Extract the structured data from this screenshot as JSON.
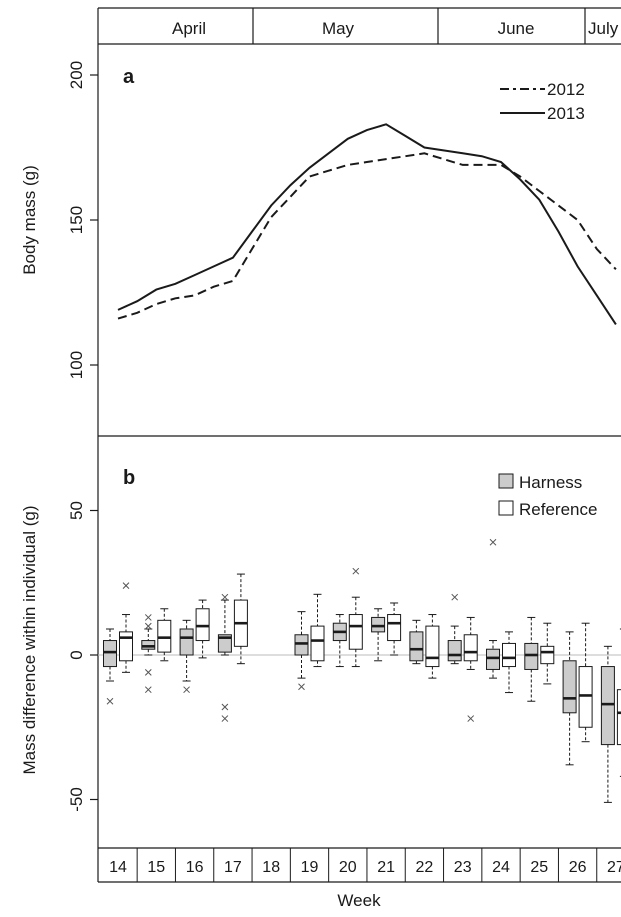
{
  "months": [
    "April",
    "May",
    "June",
    "July"
  ],
  "weeks": [
    "14",
    "15",
    "16",
    "17",
    "18",
    "19",
    "20",
    "21",
    "22",
    "23",
    "24",
    "25",
    "26",
    "27"
  ],
  "xlabel": "Week",
  "chart_data": [
    {
      "type": "line",
      "panel_label": "a",
      "ylabel": "Body mass (g)",
      "ylim": [
        75,
        210
      ],
      "yticks": [
        100,
        150,
        200
      ],
      "legend_position": "top-right",
      "x": [
        14,
        14.5,
        15,
        15.5,
        16,
        16.5,
        17,
        17.5,
        18,
        18.5,
        19,
        19.5,
        20,
        20.5,
        21,
        21.5,
        22,
        22.5,
        23,
        23.5,
        24,
        24.5,
        25,
        25.5,
        26,
        26.5,
        27
      ],
      "series": [
        {
          "name": "2012",
          "style": "dashed",
          "values": [
            116,
            118,
            121,
            123,
            124,
            127,
            129,
            140,
            151,
            158,
            165,
            167,
            169,
            170,
            171,
            172,
            173,
            171,
            169,
            169,
            169,
            165,
            160,
            155,
            150,
            140,
            133
          ]
        },
        {
          "name": "2013",
          "style": "solid",
          "values": [
            119,
            122,
            126,
            128,
            131,
            134,
            137,
            146,
            155,
            162,
            168,
            173,
            178,
            181,
            183,
            179,
            175,
            174,
            173,
            172,
            170,
            164,
            157,
            146,
            134,
            124,
            114
          ]
        }
      ]
    },
    {
      "type": "boxplot",
      "panel_label": "b",
      "ylabel": "Mass difference within individual (g)",
      "ylim": [
        -65,
        75
      ],
      "yticks": [
        -50,
        0,
        50
      ],
      "legend_position": "top-right",
      "groups": [
        {
          "name": "Harness",
          "fill": "#cccccc",
          "boxes": [
            {
              "week": 14,
              "whislo": -9,
              "q1": -4,
              "med": 1,
              "q3": 5,
              "whishi": 9,
              "fliers": [
                -16
              ]
            },
            {
              "week": 15,
              "whislo": 0,
              "q1": 2,
              "med": 3,
              "q3": 5,
              "whishi": 9,
              "fliers": [
                -12,
                -6,
                10,
                13
              ]
            },
            {
              "week": 16,
              "whislo": -9,
              "q1": 0,
              "med": 6,
              "q3": 9,
              "whishi": 12,
              "fliers": [
                -12
              ]
            },
            {
              "week": 17,
              "whislo": 0,
              "q1": 1,
              "med": 6,
              "q3": 7,
              "whishi": 19,
              "fliers": [
                -22,
                -18,
                20
              ]
            },
            {
              "week": 19,
              "whislo": -8,
              "q1": 0,
              "med": 4,
              "q3": 7,
              "whishi": 15,
              "fliers": [
                -11
              ]
            },
            {
              "week": 20,
              "whislo": -4,
              "q1": 5,
              "med": 8,
              "q3": 11,
              "whishi": 14,
              "fliers": []
            },
            {
              "week": 21,
              "whislo": -2,
              "q1": 8,
              "med": 10,
              "q3": 13,
              "whishi": 16,
              "fliers": []
            },
            {
              "week": 22,
              "whislo": -3,
              "q1": -2,
              "med": 2,
              "q3": 8,
              "whishi": 12,
              "fliers": []
            },
            {
              "week": 23,
              "whislo": -3,
              "q1": -2,
              "med": 0,
              "q3": 5,
              "whishi": 10,
              "fliers": [
                20
              ]
            },
            {
              "week": 24,
              "whislo": -8,
              "q1": -5,
              "med": -1,
              "q3": 2,
              "whishi": 5,
              "fliers": [
                39
              ]
            },
            {
              "week": 25,
              "whislo": -16,
              "q1": -5,
              "med": 0,
              "q3": 4,
              "whishi": 13,
              "fliers": []
            },
            {
              "week": 26,
              "whislo": -38,
              "q1": -20,
              "med": -15,
              "q3": -2,
              "whishi": 8,
              "fliers": []
            },
            {
              "week": 27,
              "whislo": -51,
              "q1": -31,
              "med": -17,
              "q3": -4,
              "whishi": 3,
              "fliers": []
            }
          ]
        },
        {
          "name": "Reference",
          "fill": "#ffffff",
          "boxes": [
            {
              "week": 14,
              "whislo": -6,
              "q1": -2,
              "med": 6,
              "q3": 8,
              "whishi": 14,
              "fliers": [
                24
              ]
            },
            {
              "week": 15,
              "whislo": -2,
              "q1": 1,
              "med": 6,
              "q3": 12,
              "whishi": 16,
              "fliers": []
            },
            {
              "week": 16,
              "whislo": -1,
              "q1": 5,
              "med": 10,
              "q3": 16,
              "whishi": 19,
              "fliers": []
            },
            {
              "week": 17,
              "whislo": -3,
              "q1": 3,
              "med": 11,
              "q3": 19,
              "whishi": 28,
              "fliers": []
            },
            {
              "week": 19,
              "whislo": -4,
              "q1": -2,
              "med": 5,
              "q3": 10,
              "whishi": 21,
              "fliers": []
            },
            {
              "week": 20,
              "whislo": -4,
              "q1": 2,
              "med": 10,
              "q3": 14,
              "whishi": 20,
              "fliers": [
                29
              ]
            },
            {
              "week": 21,
              "whislo": 0,
              "q1": 5,
              "med": 11,
              "q3": 14,
              "whishi": 18,
              "fliers": []
            },
            {
              "week": 22,
              "whislo": -8,
              "q1": -4,
              "med": -1,
              "q3": 10,
              "whishi": 14,
              "fliers": []
            },
            {
              "week": 23,
              "whislo": -5,
              "q1": -2,
              "med": 1,
              "q3": 7,
              "whishi": 13,
              "fliers": [
                -22
              ]
            },
            {
              "week": 24,
              "whislo": -13,
              "q1": -4,
              "med": -1,
              "q3": 4,
              "whishi": 8,
              "fliers": []
            },
            {
              "week": 25,
              "whislo": -10,
              "q1": -3,
              "med": 1,
              "q3": 3,
              "whishi": 11,
              "fliers": []
            },
            {
              "week": 26,
              "whislo": -30,
              "q1": -25,
              "med": -14,
              "q3": -4,
              "whishi": 11,
              "fliers": []
            },
            {
              "week": 27,
              "whislo": -42,
              "q1": -31,
              "med": -20,
              "q3": -12,
              "whishi": 9,
              "fliers": []
            }
          ]
        }
      ]
    }
  ]
}
